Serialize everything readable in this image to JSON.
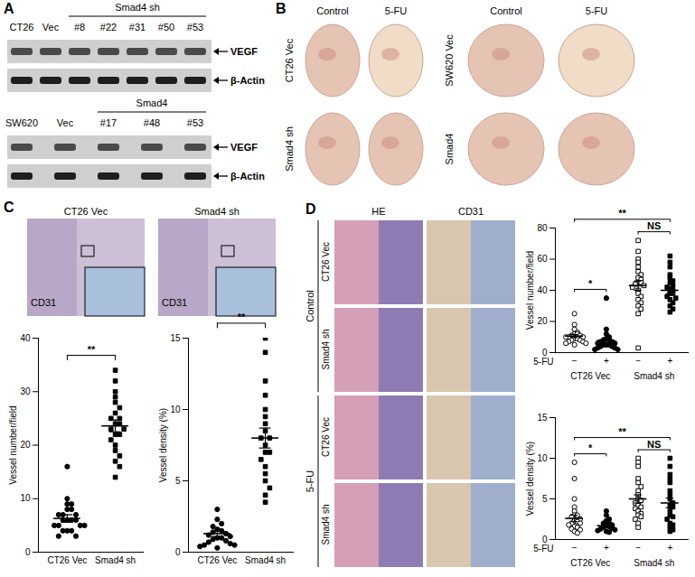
{
  "figure": {
    "A": {
      "label": "A",
      "blots": [
        {
          "lanes": [
            "CT26",
            "Vec",
            "#8",
            "#22",
            "#31",
            "#50",
            "#53"
          ],
          "group": {
            "label": "Smad4 sh",
            "lanes": [
              2,
              6
            ]
          },
          "rows": [
            "VEGF",
            "β-Actin"
          ]
        },
        {
          "lanes": [
            "SW620",
            "Vec",
            "#17",
            "#48",
            "#53"
          ],
          "group": {
            "label": "Smad4",
            "lanes": [
              2,
              4
            ]
          },
          "rows": [
            "VEGF",
            "β-Actin"
          ]
        }
      ]
    },
    "B": {
      "label": "B",
      "blocks": [
        {
          "columns": [
            "Control",
            "5-FU"
          ],
          "rows": [
            "CT26 Vec",
            "Smad4 sh"
          ]
        },
        {
          "columns": [
            "Control",
            "5-FU"
          ],
          "rows": [
            "SW620 Vec",
            "Smad4"
          ]
        }
      ]
    },
    "C": {
      "label": "C",
      "images": [
        {
          "title": "CT26 Vec",
          "stain": "CD31"
        },
        {
          "title": "Smad4 sh",
          "stain": "CD31"
        }
      ]
    },
    "D": {
      "label": "D",
      "columns": [
        "HE",
        "CD31"
      ],
      "row_groups": [
        {
          "label": "Control",
          "rows": [
            "CT26 Vec",
            "Smad4 sh"
          ]
        },
        {
          "label": "5-FU",
          "rows": [
            "CT26 Vec",
            "Smad4 sh"
          ]
        }
      ]
    }
  },
  "chart_data": [
    {
      "type": "scatter",
      "ylabel": "Vessel number/field",
      "categories": [
        "CT26 Vec",
        "Smad4 sh"
      ],
      "ylim": [
        0,
        40
      ],
      "yticks": [
        0,
        10,
        20,
        30,
        40
      ],
      "color": "#000000",
      "groups": [
        {
          "marker": "circle",
          "values": [
            16,
            10,
            9,
            9,
            8,
            8,
            7,
            7,
            7,
            6,
            6,
            6,
            6,
            5,
            5,
            5,
            5,
            4,
            4,
            4,
            3,
            3
          ],
          "mean": 6.3,
          "sem": 0.7
        },
        {
          "marker": "square",
          "values": [
            34,
            32,
            30,
            29,
            28,
            27,
            26,
            25,
            25,
            24,
            24,
            23,
            23,
            22,
            22,
            21,
            20,
            19,
            18,
            17,
            16,
            14
          ],
          "mean": 23.6,
          "sem": 1.1
        }
      ],
      "annotations": [
        {
          "text": "**",
          "from": 0,
          "to": 1
        }
      ]
    },
    {
      "type": "scatter",
      "ylabel": "Vessel density (%)",
      "categories": [
        "CT26 Vec",
        "Smad4 sh"
      ],
      "ylim": [
        0,
        15
      ],
      "yticks": [
        0,
        5,
        10,
        15
      ],
      "color": "#000000",
      "groups": [
        {
          "marker": "circle",
          "values": [
            3,
            2.3,
            2,
            1.8,
            1.6,
            1.5,
            1.4,
            1.3,
            1.2,
            1.1,
            1,
            1,
            0.9,
            0.8,
            0.7,
            0.6,
            0.5,
            0.5,
            0.4,
            0.3
          ],
          "mean": 1.3,
          "sem": 0.2
        },
        {
          "marker": "square",
          "values": [
            15,
            14,
            12,
            11,
            10,
            9.5,
            9,
            8.5,
            8,
            8,
            7.5,
            7,
            7,
            6.5,
            6,
            5.5,
            5,
            4.5,
            4,
            3.5
          ],
          "mean": 8,
          "sem": 0.7
        }
      ],
      "annotations": [
        {
          "text": "**",
          "from": 0,
          "to": 1
        }
      ]
    },
    {
      "type": "scatter",
      "ylabel": "Vessel number/field",
      "xlabel": "5-FU",
      "categories": [
        "−",
        "+",
        "−",
        "+"
      ],
      "category_groups": [
        {
          "label": "CT26 Vec",
          "categories": [
            0,
            1
          ]
        },
        {
          "label": "Smad4 sh",
          "categories": [
            2,
            3
          ]
        }
      ],
      "ylim": [
        0,
        80
      ],
      "yticks": [
        0,
        20,
        40,
        60,
        80
      ],
      "color": "#000000",
      "groups": [
        {
          "marker": "circle-open",
          "values": [
            25,
            18,
            15,
            13,
            12,
            12,
            11,
            11,
            10,
            10,
            10,
            9,
            9,
            8,
            8,
            7,
            7,
            6,
            6,
            5
          ],
          "mean": 10.6,
          "sem": 1
        },
        {
          "marker": "circle",
          "values": [
            35,
            15,
            12,
            10,
            9,
            8,
            8,
            7,
            7,
            6,
            6,
            5,
            5,
            5,
            4,
            4,
            3,
            3,
            2,
            2
          ],
          "mean": 7.8,
          "sem": 1.7
        },
        {
          "marker": "square-open",
          "values": [
            72,
            65,
            60,
            58,
            55,
            52,
            50,
            48,
            47,
            45,
            45,
            44,
            43,
            42,
            40,
            38,
            36,
            34,
            32,
            30,
            28,
            25,
            3
          ],
          "mean": 43,
          "sem": 3
        },
        {
          "marker": "square",
          "values": [
            62,
            58,
            55,
            50,
            48,
            46,
            45,
            43,
            42,
            40,
            40,
            38,
            38,
            36,
            35,
            34,
            32,
            30,
            28,
            26
          ],
          "mean": 40,
          "sem": 2.2
        }
      ],
      "annotations": [
        {
          "text": "*",
          "from": 0,
          "to": 1
        },
        {
          "text": "**",
          "from": 0,
          "to": 3
        },
        {
          "text": "NS",
          "from": 2,
          "to": 3
        }
      ]
    },
    {
      "type": "scatter",
      "ylabel": "Vessel density (%)",
      "xlabel": "5-FU",
      "categories": [
        "−",
        "+",
        "−",
        "+"
      ],
      "category_groups": [
        {
          "label": "CT26 Vec",
          "categories": [
            0,
            1
          ]
        },
        {
          "label": "Smad4 sh",
          "categories": [
            2,
            3
          ]
        }
      ],
      "ylim": [
        0,
        15
      ],
      "yticks": [
        0,
        5,
        10,
        15
      ],
      "color": "#000000",
      "groups": [
        {
          "marker": "circle-open",
          "values": [
            9.5,
            7.5,
            5,
            4,
            3.5,
            3,
            3,
            2.8,
            2.5,
            2.3,
            2.2,
            2,
            2,
            1.8,
            1.6,
            1.5,
            1.3,
            1.2,
            1,
            0.8
          ],
          "mean": 2.6,
          "sem": 0.4
        },
        {
          "marker": "circle",
          "values": [
            3.5,
            3,
            2.5,
            2.3,
            2,
            2,
            1.8,
            1.7,
            1.6,
            1.5,
            1.4,
            1.3,
            1.2,
            1.1,
            1,
            0.9
          ],
          "mean": 1.7,
          "sem": 0.2
        },
        {
          "marker": "square-open",
          "values": [
            10,
            9.5,
            9,
            7.5,
            7,
            6.5,
            6,
            5.5,
            5,
            4.8,
            4.5,
            4.2,
            4,
            3.8,
            3.5,
            3.2,
            3,
            2.8,
            2.5,
            2,
            1.5
          ],
          "mean": 5,
          "sem": 0.5
        },
        {
          "marker": "square",
          "values": [
            10,
            9,
            8,
            7.5,
            7,
            6,
            5.5,
            5,
            4.5,
            4.2,
            4,
            3.5,
            3,
            2.8,
            2.5,
            2,
            1.8,
            1.5,
            1.2,
            1
          ],
          "mean": 4.5,
          "sem": 0.6
        }
      ],
      "annotations": [
        {
          "text": "*",
          "from": 0,
          "to": 1
        },
        {
          "text": "**",
          "from": 0,
          "to": 3
        },
        {
          "text": "NS",
          "from": 2,
          "to": 3
        }
      ]
    }
  ]
}
